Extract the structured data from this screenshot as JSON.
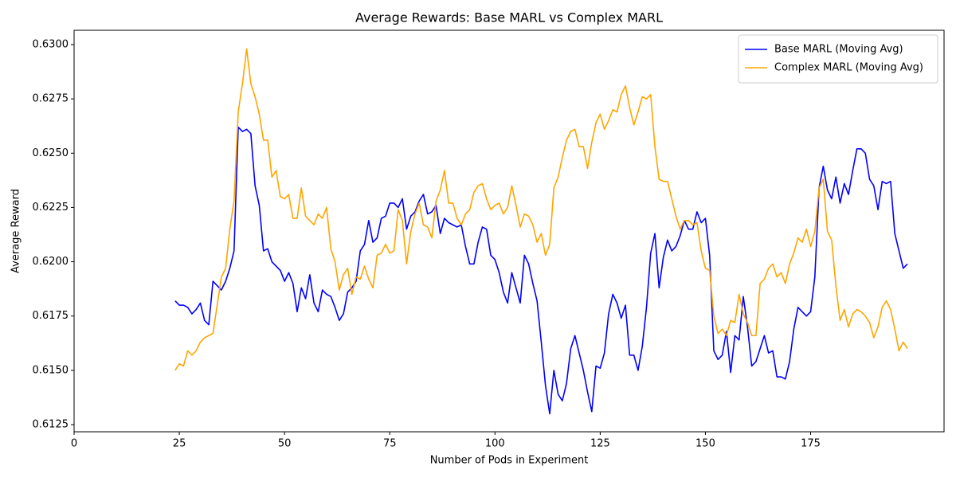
{
  "chart_data": {
    "type": "line",
    "title": "Average Rewards: Base MARL vs Complex MARL",
    "xlabel": "Number of Pods in Experiment",
    "ylabel": "Average Reward",
    "legend": "upper right",
    "xlim": [
      0,
      206.7
    ],
    "ylim": [
      0.61217,
      0.63066
    ],
    "xticks": [
      0,
      25,
      50,
      75,
      100,
      125,
      150,
      175
    ],
    "yticks": [
      0.6125,
      {
        "value": 0.615,
        "label": "0.6150"
      },
      0.6175,
      {
        "value": 0.62,
        "label": "0.6200"
      },
      0.6225,
      {
        "value": 0.625,
        "label": "0.6250"
      },
      0.6275,
      {
        "value": 0.63,
        "label": "0.6300"
      }
    ],
    "x": [
      24,
      25,
      26,
      27,
      28,
      29,
      30,
      31,
      32,
      33,
      34,
      35,
      36,
      37,
      38,
      39,
      40,
      41,
      42,
      43,
      44,
      45,
      46,
      47,
      48,
      49,
      50,
      51,
      52,
      53,
      54,
      55,
      56,
      57,
      58,
      59,
      60,
      61,
      62,
      63,
      64,
      65,
      66,
      67,
      68,
      69,
      70,
      71,
      72,
      73,
      74,
      75,
      76,
      77,
      78,
      79,
      80,
      81,
      82,
      83,
      84,
      85,
      86,
      87,
      88,
      89,
      90,
      91,
      92,
      93,
      94,
      95,
      96,
      97,
      98,
      99,
      100,
      101,
      102,
      103,
      104,
      105,
      106,
      107,
      108,
      109,
      110,
      111,
      112,
      113,
      114,
      115,
      116,
      117,
      118,
      119,
      120,
      121,
      122,
      123,
      124,
      125,
      126,
      127,
      128,
      129,
      130,
      131,
      132,
      133,
      134,
      135,
      136,
      137,
      138,
      139,
      140,
      141,
      142,
      143,
      144,
      145,
      146,
      147,
      148,
      149,
      150,
      151,
      152,
      153,
      154,
      155,
      156,
      157,
      158,
      159,
      160,
      161,
      162,
      163,
      164,
      165,
      166,
      167,
      168,
      169,
      170,
      171,
      172,
      173,
      174,
      175,
      176,
      177,
      178,
      179,
      180,
      181,
      182,
      183,
      184,
      185,
      186,
      187,
      188,
      189,
      190,
      191,
      192,
      193,
      194,
      195,
      196,
      197,
      198
    ],
    "series": [
      {
        "name": "Base MARL (Moving Avg)",
        "color": "#0000ff",
        "values": [
          0.6182,
          0.618,
          0.618,
          0.6179,
          0.6176,
          0.6178,
          0.6181,
          0.6173,
          0.6171,
          0.6191,
          0.6189,
          0.6187,
          0.6191,
          0.6197,
          0.6205,
          0.6262,
          0.626,
          0.6261,
          0.6259,
          0.6235,
          0.6226,
          0.6205,
          0.6206,
          0.62,
          0.6198,
          0.6196,
          0.6191,
          0.6195,
          0.619,
          0.6177,
          0.6188,
          0.6183,
          0.6194,
          0.6181,
          0.6177,
          0.6187,
          0.6185,
          0.6184,
          0.6179,
          0.6173,
          0.6176,
          0.6186,
          0.6188,
          0.6191,
          0.6205,
          0.6208,
          0.6219,
          0.6209,
          0.6211,
          0.622,
          0.6221,
          0.6227,
          0.6227,
          0.6225,
          0.6229,
          0.6215,
          0.6221,
          0.6223,
          0.6228,
          0.6231,
          0.6222,
          0.6223,
          0.6226,
          0.6213,
          0.622,
          0.6218,
          0.6217,
          0.6216,
          0.6217,
          0.6207,
          0.6199,
          0.6199,
          0.6209,
          0.6216,
          0.6215,
          0.6203,
          0.6201,
          0.6195,
          0.6186,
          0.6181,
          0.6195,
          0.6188,
          0.6181,
          0.6203,
          0.6199,
          0.619,
          0.6182,
          0.6163,
          0.6143,
          0.613,
          0.615,
          0.6139,
          0.6136,
          0.6144,
          0.616,
          0.6166,
          0.6158,
          0.615,
          0.614,
          0.6131,
          0.6152,
          0.6151,
          0.6158,
          0.6176,
          0.6185,
          0.6181,
          0.6174,
          0.618,
          0.6157,
          0.6157,
          0.615,
          0.6161,
          0.6179,
          0.6204,
          0.6213,
          0.6188,
          0.6202,
          0.621,
          0.6205,
          0.6207,
          0.6212,
          0.6219,
          0.6215,
          0.6215,
          0.6223,
          0.6218,
          0.622,
          0.6203,
          0.6159,
          0.6155,
          0.6157,
          0.6168,
          0.6149,
          0.6166,
          0.6164,
          0.6184,
          0.617,
          0.6152,
          0.6154,
          0.616,
          0.6166,
          0.6158,
          0.6159,
          0.6147,
          0.6147,
          0.6146,
          0.6154,
          0.6169,
          0.6179,
          0.6177,
          0.6175,
          0.6177,
          0.6193,
          0.6234,
          0.6244,
          0.6233,
          0.6229,
          0.6239,
          0.6227,
          0.6236,
          0.6231,
          0.6242,
          0.6252,
          0.6252,
          0.625,
          0.6238,
          0.6235,
          0.6224,
          0.6237,
          0.6236,
          0.6237,
          0.6213,
          0.6205,
          0.6197,
          0.6199
        ]
      },
      {
        "name": "Complex MARL (Moving Avg)",
        "color": "#ffa500",
        "values": [
          0.615,
          0.6153,
          0.6152,
          0.6159,
          0.6157,
          0.6159,
          0.6163,
          0.6165,
          0.6166,
          0.6167,
          0.618,
          0.6193,
          0.6197,
          0.6215,
          0.6228,
          0.6269,
          0.6282,
          0.6298,
          0.6282,
          0.6276,
          0.6268,
          0.6256,
          0.6256,
          0.6239,
          0.6242,
          0.623,
          0.6229,
          0.6231,
          0.622,
          0.622,
          0.6234,
          0.6221,
          0.6219,
          0.6217,
          0.6222,
          0.622,
          0.6225,
          0.6206,
          0.62,
          0.6187,
          0.6194,
          0.6197,
          0.6185,
          0.6193,
          0.6192,
          0.6198,
          0.6192,
          0.6188,
          0.6203,
          0.6204,
          0.6208,
          0.6204,
          0.6205,
          0.6224,
          0.6219,
          0.6199,
          0.6214,
          0.6222,
          0.6227,
          0.6217,
          0.6216,
          0.6211,
          0.6228,
          0.6233,
          0.6242,
          0.6227,
          0.6227,
          0.622,
          0.6217,
          0.6222,
          0.6224,
          0.6232,
          0.6235,
          0.6236,
          0.6229,
          0.6224,
          0.6226,
          0.6227,
          0.6222,
          0.6225,
          0.6235,
          0.6226,
          0.6216,
          0.6222,
          0.6221,
          0.6217,
          0.6209,
          0.6213,
          0.6203,
          0.6208,
          0.6234,
          0.6239,
          0.6248,
          0.6256,
          0.626,
          0.6261,
          0.6253,
          0.6253,
          0.6243,
          0.6255,
          0.6264,
          0.6268,
          0.6261,
          0.6265,
          0.627,
          0.6269,
          0.6277,
          0.6281,
          0.6271,
          0.6263,
          0.6269,
          0.6276,
          0.6275,
          0.6277,
          0.6253,
          0.6238,
          0.6237,
          0.6237,
          0.6229,
          0.6221,
          0.6215,
          0.6219,
          0.6219,
          0.6217,
          0.6218,
          0.6205,
          0.6197,
          0.6196,
          0.6175,
          0.6167,
          0.6169,
          0.6166,
          0.6173,
          0.6172,
          0.6185,
          0.6176,
          0.6172,
          0.6166,
          0.6166,
          0.619,
          0.6192,
          0.6197,
          0.6199,
          0.6193,
          0.6195,
          0.619,
          0.6199,
          0.6204,
          0.6211,
          0.6209,
          0.6215,
          0.6207,
          0.6214,
          0.6234,
          0.6238,
          0.6214,
          0.621,
          0.6189,
          0.6173,
          0.6178,
          0.617,
          0.6176,
          0.6178,
          0.6177,
          0.6175,
          0.6172,
          0.6165,
          0.617,
          0.6179,
          0.6182,
          0.6178,
          0.6169,
          0.6159,
          0.6163,
          0.616
        ]
      }
    ]
  }
}
